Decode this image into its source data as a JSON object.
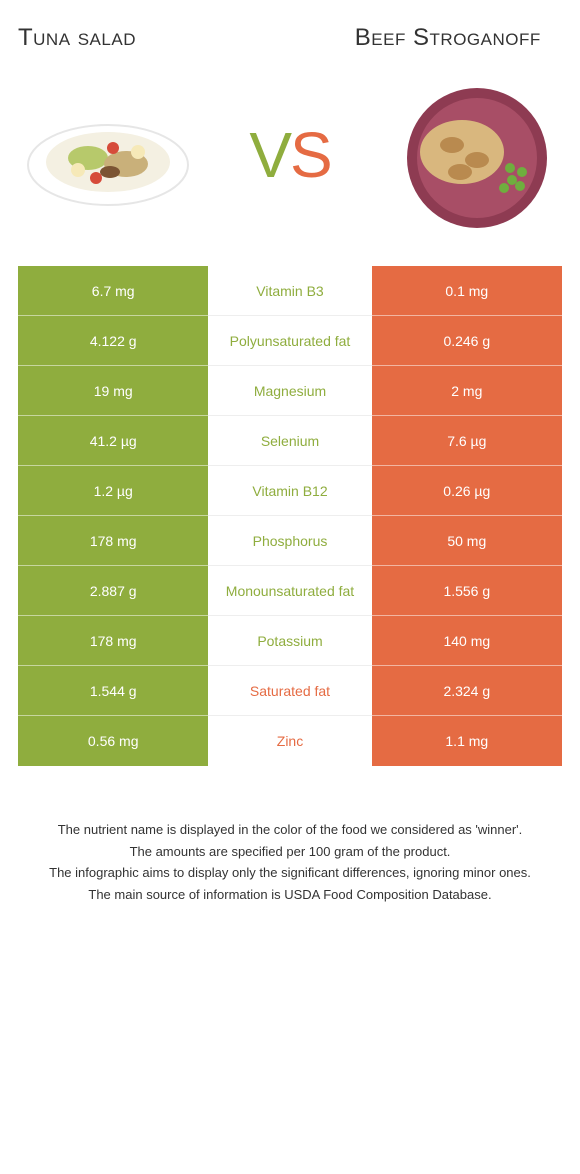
{
  "colors": {
    "left": "#8fad3e",
    "right": "#e56b43"
  },
  "left_food": {
    "title": "Tuna salad"
  },
  "right_food": {
    "title": "Beef\nStroganoff"
  },
  "vs_label": {
    "v": "V",
    "s": "S"
  },
  "rows": [
    {
      "left": "6.7 mg",
      "label": "Vitamin B3",
      "right": "0.1 mg",
      "winner": "left"
    },
    {
      "left": "4.122 g",
      "label": "Polyunsaturated fat",
      "right": "0.246 g",
      "winner": "left"
    },
    {
      "left": "19 mg",
      "label": "Magnesium",
      "right": "2 mg",
      "winner": "left"
    },
    {
      "left": "41.2 µg",
      "label": "Selenium",
      "right": "7.6 µg",
      "winner": "left"
    },
    {
      "left": "1.2 µg",
      "label": "Vitamin B12",
      "right": "0.26 µg",
      "winner": "left"
    },
    {
      "left": "178 mg",
      "label": "Phosphorus",
      "right": "50 mg",
      "winner": "left"
    },
    {
      "left": "2.887 g",
      "label": "Monounsaturated fat",
      "right": "1.556 g",
      "winner": "left"
    },
    {
      "left": "178 mg",
      "label": "Potassium",
      "right": "140 mg",
      "winner": "left"
    },
    {
      "left": "1.544 g",
      "label": "Saturated fat",
      "right": "2.324 g",
      "winner": "right"
    },
    {
      "left": "0.56 mg",
      "label": "Zinc",
      "right": "1.1 mg",
      "winner": "right"
    }
  ],
  "footnotes": [
    "The nutrient name is displayed in the color of the food we considered as 'winner'.",
    "The amounts are specified per 100 gram of the product.",
    "The infographic aims to display only the significant differences, ignoring minor ones.",
    "The main source of information is USDA Food Composition Database."
  ]
}
